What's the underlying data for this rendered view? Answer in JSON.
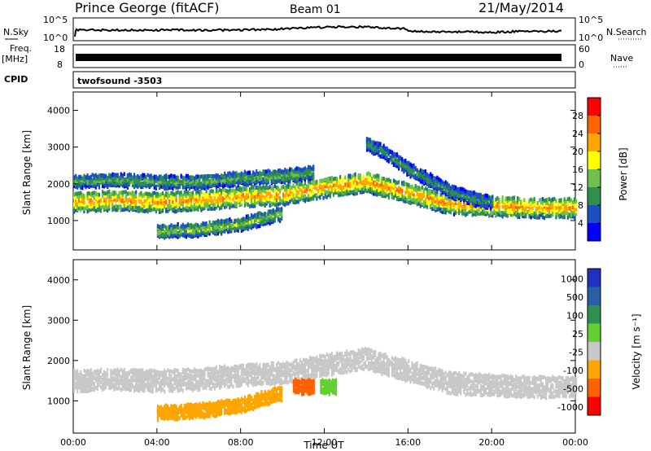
{
  "header": {
    "station": "Prince George (fitACF)",
    "beam": "Beam 01",
    "date": "21/May/2014"
  },
  "strip_labels": {
    "nsky": "N.Sky",
    "nsky_ticks": [
      "10^5",
      "10^0"
    ],
    "nsearch": "N.Search",
    "nsearch_ticks": [
      "10^5",
      "10^0"
    ],
    "freq": "Freq.",
    "freq_unit": "[MHz]",
    "freq_ticks": [
      "18",
      "8"
    ],
    "nave": "Nave",
    "nave_ticks": [
      "60",
      "0"
    ],
    "cpid": "CPID",
    "cpid_value": "twofsound  -3503"
  },
  "colors": {
    "axis": "#000000",
    "power_scale": [
      "#0000ff",
      "#1a50c0",
      "#2f8f4f",
      "#6fbf4f",
      "#ffff00",
      "#ffa500",
      "#ff6400",
      "#ff0000"
    ],
    "velocity_scale": [
      "#2030c0",
      "#2a5fa8",
      "#2f8f4f",
      "#62d030",
      "#c8c8c8",
      "#ffa500",
      "#ff6000",
      "#ff0000"
    ]
  },
  "chart_data": [
    {
      "type": "heatmap",
      "panel": "power",
      "ylabel": "Slant Range [km]",
      "xlim": [
        "00:00",
        "24:00"
      ],
      "ylim": [
        200,
        4500
      ],
      "yticks": [
        "1000",
        "2000",
        "3000",
        "4000"
      ],
      "colorbar": {
        "label": "Power [dB]",
        "range": [
          0,
          32
        ],
        "ticks": [
          "4",
          "8",
          "12",
          "16",
          "20",
          "24",
          "28"
        ]
      },
      "bands": [
        {
          "name": "main",
          "x": [
            0,
            2,
            4,
            6,
            8,
            10,
            12,
            14,
            16,
            18,
            20,
            22,
            24
          ],
          "y": [
            1500,
            1550,
            1500,
            1550,
            1650,
            1700,
            1900,
            2050,
            1750,
            1450,
            1400,
            1350,
            1350
          ],
          "level": 22
        },
        {
          "name": "upper",
          "x": [
            0,
            2,
            4,
            6,
            8,
            10,
            11.5
          ],
          "y": [
            2050,
            2100,
            2050,
            2050,
            2150,
            2200,
            2300
          ],
          "level": 12
        },
        {
          "name": "lower",
          "x": [
            4,
            6,
            8,
            10
          ],
          "y": [
            700,
            750,
            900,
            1200
          ],
          "level": 14
        },
        {
          "name": "high-arc",
          "x": [
            14,
            15,
            16,
            17,
            18,
            19,
            20
          ],
          "y": [
            3100,
            2800,
            2400,
            2100,
            1800,
            1600,
            1500
          ],
          "level": 10
        }
      ]
    },
    {
      "type": "heatmap",
      "panel": "velocity",
      "ylabel": "Slant Range [km]",
      "xlabel": "Time UT",
      "xlim": [
        "00:00",
        "24:00"
      ],
      "ylim": [
        200,
        4500
      ],
      "yticks": [
        "1000",
        "2000",
        "3000",
        "4000"
      ],
      "xticks": [
        "00:00",
        "04:00",
        "08:00",
        "12:00",
        "16:00",
        "20:00",
        "00:00"
      ],
      "colorbar": {
        "label": "Velocity [m s⁻¹]",
        "ticks": [
          "1000",
          "500",
          "100",
          "25",
          "-25",
          "-100",
          "-500",
          "-1000"
        ]
      },
      "bands": [
        {
          "name": "main-ground",
          "x": [
            0,
            2,
            4,
            6,
            8,
            10,
            12,
            14,
            16,
            18,
            20,
            22,
            24
          ],
          "y": [
            1500,
            1550,
            1500,
            1550,
            1650,
            1700,
            1900,
            2050,
            1750,
            1450,
            1400,
            1350,
            1350
          ],
          "velocity": 0
        },
        {
          "name": "lower-negative",
          "x": [
            4,
            6,
            8,
            10
          ],
          "y": [
            700,
            750,
            900,
            1200
          ],
          "velocity": -120
        },
        {
          "name": "patch-negative",
          "x": [
            10.5,
            11.5
          ],
          "y": [
            1350,
            1350
          ],
          "velocity": -300
        },
        {
          "name": "patch-positive",
          "x": [
            11.8,
            12.6
          ],
          "y": [
            1350,
            1350
          ],
          "velocity": 100
        }
      ]
    }
  ]
}
